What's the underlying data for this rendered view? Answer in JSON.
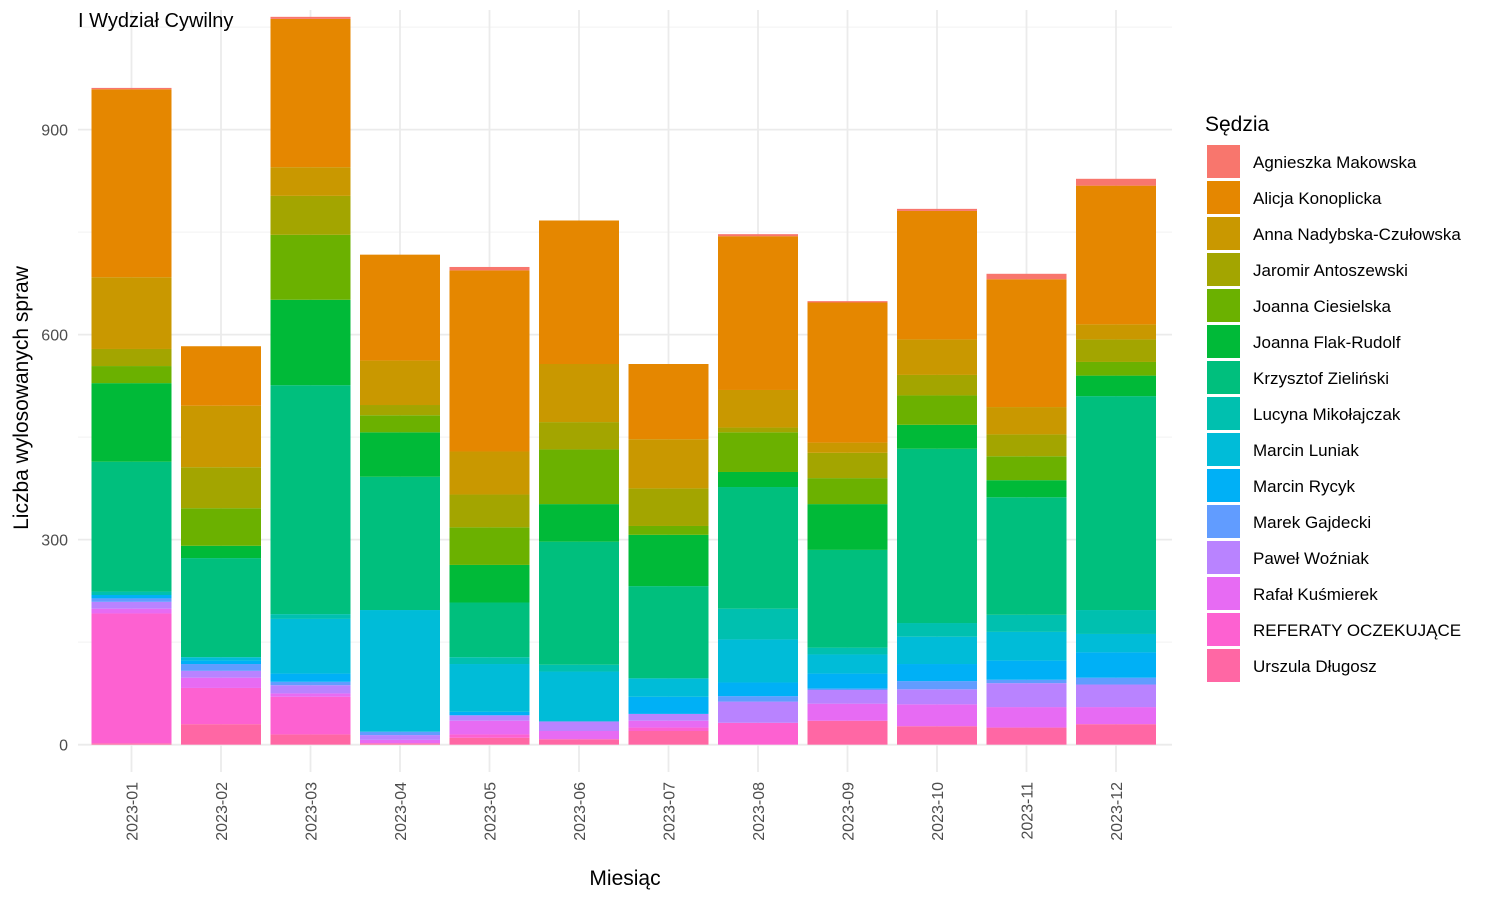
{
  "chart_data": {
    "type": "bar",
    "stacked": true,
    "title": "I Wydział Cywilny",
    "xlabel": "Miesiąc",
    "ylabel": "Liczba wylosowanych spraw",
    "ylim": [
      -40,
      1075
    ],
    "yticks": [
      0,
      300,
      600,
      900
    ],
    "grid": true,
    "legend_title": "Sędzia",
    "legend_position": "right",
    "categories": [
      "2023-01",
      "2023-02",
      "2023-03",
      "2023-04",
      "2023-05",
      "2023-06",
      "2023-07",
      "2023-08",
      "2023-09",
      "2023-10",
      "2023-11",
      "2023-12"
    ],
    "stack_order_bottom_to_top": [
      "Urszula Długosz",
      "REFERATY OCZEKUJĄCE",
      "Rafał Kuśmierek",
      "Paweł Woźniak",
      "Marek Gajdecki",
      "Marcin Rycyk",
      "Marcin Luniak",
      "Lucyna Mikołajczak",
      "Krzysztof Zieliński",
      "Joanna Flak-Rudolf",
      "Joanna Ciesielska",
      "Jaromir Antoszewski",
      "Anna Nadybska-Czułowska",
      "Alicja Konoplicka",
      "Agnieszka Makowska"
    ],
    "series": [
      {
        "name": "Agnieszka Makowska",
        "color": "#F8766D",
        "values": [
          2,
          0,
          3,
          0,
          5,
          0,
          0,
          3,
          2,
          3,
          8,
          10
        ]
      },
      {
        "name": "Alicja Konoplicka",
        "color": "#E58700",
        "values": [
          275,
          87,
          217,
          155,
          265,
          210,
          110,
          225,
          205,
          188,
          187,
          203
        ]
      },
      {
        "name": "Anna Nadybska-Czułowska",
        "color": "#C99800",
        "values": [
          105,
          90,
          42,
          65,
          63,
          85,
          72,
          55,
          15,
          52,
          40,
          22
        ]
      },
      {
        "name": "Jaromir Antoszewski",
        "color": "#A3A500",
        "values": [
          25,
          60,
          57,
          15,
          48,
          40,
          55,
          7,
          37,
          30,
          32,
          33
        ]
      },
      {
        "name": "Joanna Ciesielska",
        "color": "#6BB100",
        "values": [
          25,
          55,
          95,
          25,
          55,
          80,
          13,
          58,
          38,
          43,
          35,
          20
        ]
      },
      {
        "name": "Joanna Flak-Rudolf",
        "color": "#00BA38",
        "values": [
          115,
          18,
          125,
          65,
          55,
          55,
          75,
          22,
          67,
          35,
          25,
          30
        ]
      },
      {
        "name": "Krzysztof Zieliński",
        "color": "#00BF7D",
        "values": [
          190,
          145,
          335,
          195,
          80,
          180,
          135,
          178,
          143,
          255,
          172,
          313
        ]
      },
      {
        "name": "Lucyna Mikołajczak",
        "color": "#00C0AF",
        "values": [
          5,
          0,
          7,
          0,
          10,
          10,
          0,
          45,
          10,
          20,
          25,
          35
        ]
      },
      {
        "name": "Marcin Luniak",
        "color": "#00BCD8",
        "values": [
          0,
          5,
          80,
          178,
          70,
          73,
          27,
          63,
          28,
          40,
          42,
          27
        ]
      },
      {
        "name": "Marcin Rycyk",
        "color": "#00B0F6",
        "values": [
          5,
          5,
          12,
          0,
          5,
          0,
          25,
          20,
          22,
          25,
          28,
          37
        ]
      },
      {
        "name": "Marek Gajdecki",
        "color": "#619CFF",
        "values": [
          5,
          10,
          5,
          5,
          0,
          0,
          0,
          8,
          2,
          12,
          5,
          10
        ]
      },
      {
        "name": "Paweł Woźniak",
        "color": "#B983FF",
        "values": [
          10,
          10,
          12,
          7,
          8,
          14,
          10,
          31,
          20,
          22,
          35,
          33
        ]
      },
      {
        "name": "Rafał Kuśmierek",
        "color": "#E76BF3",
        "values": [
          7,
          15,
          5,
          5,
          20,
          12,
          10,
          0,
          25,
          32,
          30,
          25
        ]
      },
      {
        "name": "REFERATY OCZEKUJĄCE",
        "color": "#FD61D1",
        "values": [
          190,
          53,
          55,
          0,
          5,
          0,
          5,
          32,
          0,
          0,
          0,
          0
        ]
      },
      {
        "name": "Urszula Długosz",
        "color": "#FF67A4",
        "values": [
          2,
          30,
          15,
          2,
          10,
          8,
          20,
          0,
          35,
          27,
          25,
          30
        ]
      }
    ]
  }
}
